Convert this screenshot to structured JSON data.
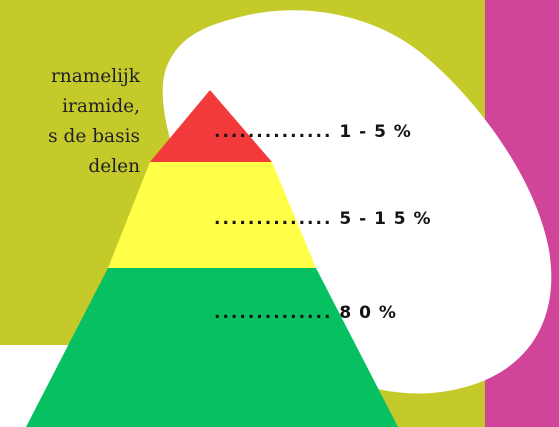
{
  "intro_lines": [
    "rnamelijk",
    "iramide,",
    "s de basis",
    "delen"
  ],
  "levels": [
    {
      "dots": "..............",
      "percent": "1 - 5 %",
      "color": "#f23a3a"
    },
    {
      "dots": "..............",
      "percent": "5 - 1 5 %",
      "color": "#ffff47"
    },
    {
      "dots": "..............",
      "percent": "8 0 %",
      "color": "#06c061"
    }
  ],
  "colors": {
    "background": "#c4ca2a",
    "side_panel": "#d0449a",
    "blob": "#ffffff"
  }
}
